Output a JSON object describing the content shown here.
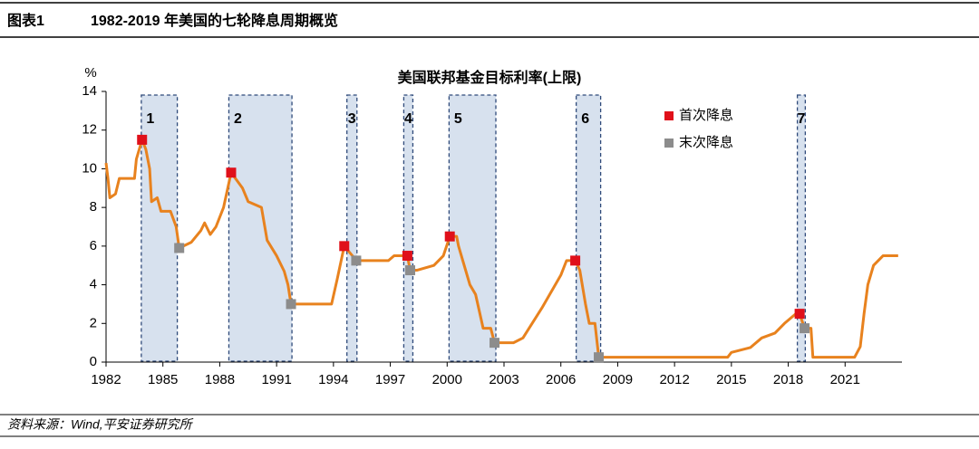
{
  "header": {
    "number": "图表1",
    "title": "1982-2019 年美国的七轮降息周期概览"
  },
  "source": "资料来源：Wind,平安证券研究所",
  "chart_data": {
    "type": "line",
    "title": "美国联邦基金目标利率(上限)",
    "y_unit": "%",
    "xlim": [
      1982,
      2024
    ],
    "xticks": [
      1982,
      1985,
      1988,
      1991,
      1994,
      1997,
      2000,
      2003,
      2006,
      2009,
      2012,
      2015,
      2018,
      2021
    ],
    "ylim": [
      0,
      14
    ],
    "yticks": [
      0,
      2,
      4,
      6,
      8,
      10,
      12,
      14
    ],
    "grid": false,
    "line": {
      "color": "#E8821E",
      "x": [
        1982.0,
        1982.1,
        1982.2,
        1982.5,
        1982.7,
        1983.5,
        1983.6,
        1983.9,
        1984.1,
        1984.3,
        1984.4,
        1984.7,
        1984.9,
        1985.4,
        1985.7,
        1985.86,
        1986.5,
        1987.0,
        1987.2,
        1987.5,
        1987.8,
        1988.2,
        1988.6,
        1989.2,
        1989.5,
        1990.2,
        1990.5,
        1991.0,
        1991.4,
        1991.6,
        1991.76,
        1993.9,
        1994.2,
        1994.57,
        1995.0,
        1995.2,
        1996.9,
        1997.2,
        1997.9,
        1998.05,
        1998.4,
        1999.3,
        1999.8,
        2000.14,
        2000.5,
        2000.6,
        2000.9,
        2001.2,
        2001.5,
        2001.9,
        2002.3,
        2002.5,
        2003.5,
        2004.0,
        2005.0,
        2006.0,
        2006.3,
        2006.76,
        2007.0,
        2007.3,
        2007.5,
        2007.8,
        2008.0,
        2014.8,
        2015.0,
        2016.0,
        2016.6,
        2017.3,
        2017.8,
        2018.4,
        2018.6,
        2018.86,
        2019.2,
        2019.3,
        2021.5,
        2021.8,
        2022.0,
        2022.2,
        2022.5,
        2023.0,
        2023.8
      ],
      "values": [
        10.3,
        9.5,
        8.5,
        8.7,
        9.5,
        9.5,
        10.5,
        11.5,
        11.0,
        10.0,
        8.3,
        8.5,
        7.8,
        7.8,
        7.0,
        5.9,
        6.2,
        6.8,
        7.2,
        6.6,
        7.0,
        8.0,
        9.8,
        9.0,
        8.3,
        8.0,
        6.3,
        5.5,
        4.7,
        4.0,
        3.0,
        3.0,
        4.3,
        6.0,
        5.5,
        5.25,
        5.25,
        5.5,
        5.5,
        4.75,
        4.75,
        5.0,
        5.5,
        6.5,
        6.5,
        6.0,
        5.0,
        4.0,
        3.5,
        1.75,
        1.75,
        1.0,
        1.0,
        1.25,
        2.8,
        4.5,
        5.25,
        5.25,
        4.75,
        3.0,
        2.0,
        2.0,
        0.25,
        0.25,
        0.5,
        0.75,
        1.25,
        1.5,
        2.0,
        2.5,
        2.5,
        1.75,
        1.75,
        0.25,
        0.25,
        0.8,
        2.5,
        4.0,
        5.0,
        5.5,
        5.5
      ]
    },
    "markers": [
      {
        "name": "首次降息",
        "color": "#E0101A",
        "x": [
          1983.9,
          1988.6,
          1994.57,
          1997.9,
          2000.14,
          2006.76,
          2018.6
        ],
        "values": [
          11.5,
          9.8,
          6.0,
          5.5,
          6.5,
          5.25,
          2.5
        ]
      },
      {
        "name": "末次降息",
        "color": "#8C8C8C",
        "x": [
          1985.86,
          1991.76,
          1995.2,
          1998.05,
          2002.5,
          2008.0,
          2018.86
        ],
        "values": [
          5.9,
          3.0,
          5.25,
          4.75,
          1.0,
          0.25,
          1.75
        ]
      }
    ],
    "periods": [
      {
        "label": "1",
        "start": 1983.86,
        "end": 1985.76
      },
      {
        "label": "2",
        "start": 1988.48,
        "end": 1991.81
      },
      {
        "label": "3",
        "start": 1994.71,
        "end": 1995.24
      },
      {
        "label": "4",
        "start": 1997.71,
        "end": 1998.19
      },
      {
        "label": "5",
        "start": 2000.1,
        "end": 2002.57
      },
      {
        "label": "6",
        "start": 2006.81,
        "end": 2008.1
      },
      {
        "label": "7",
        "start": 2018.48,
        "end": 2018.9
      }
    ],
    "period_color": "#D7E1EE",
    "legend": "upper right"
  }
}
